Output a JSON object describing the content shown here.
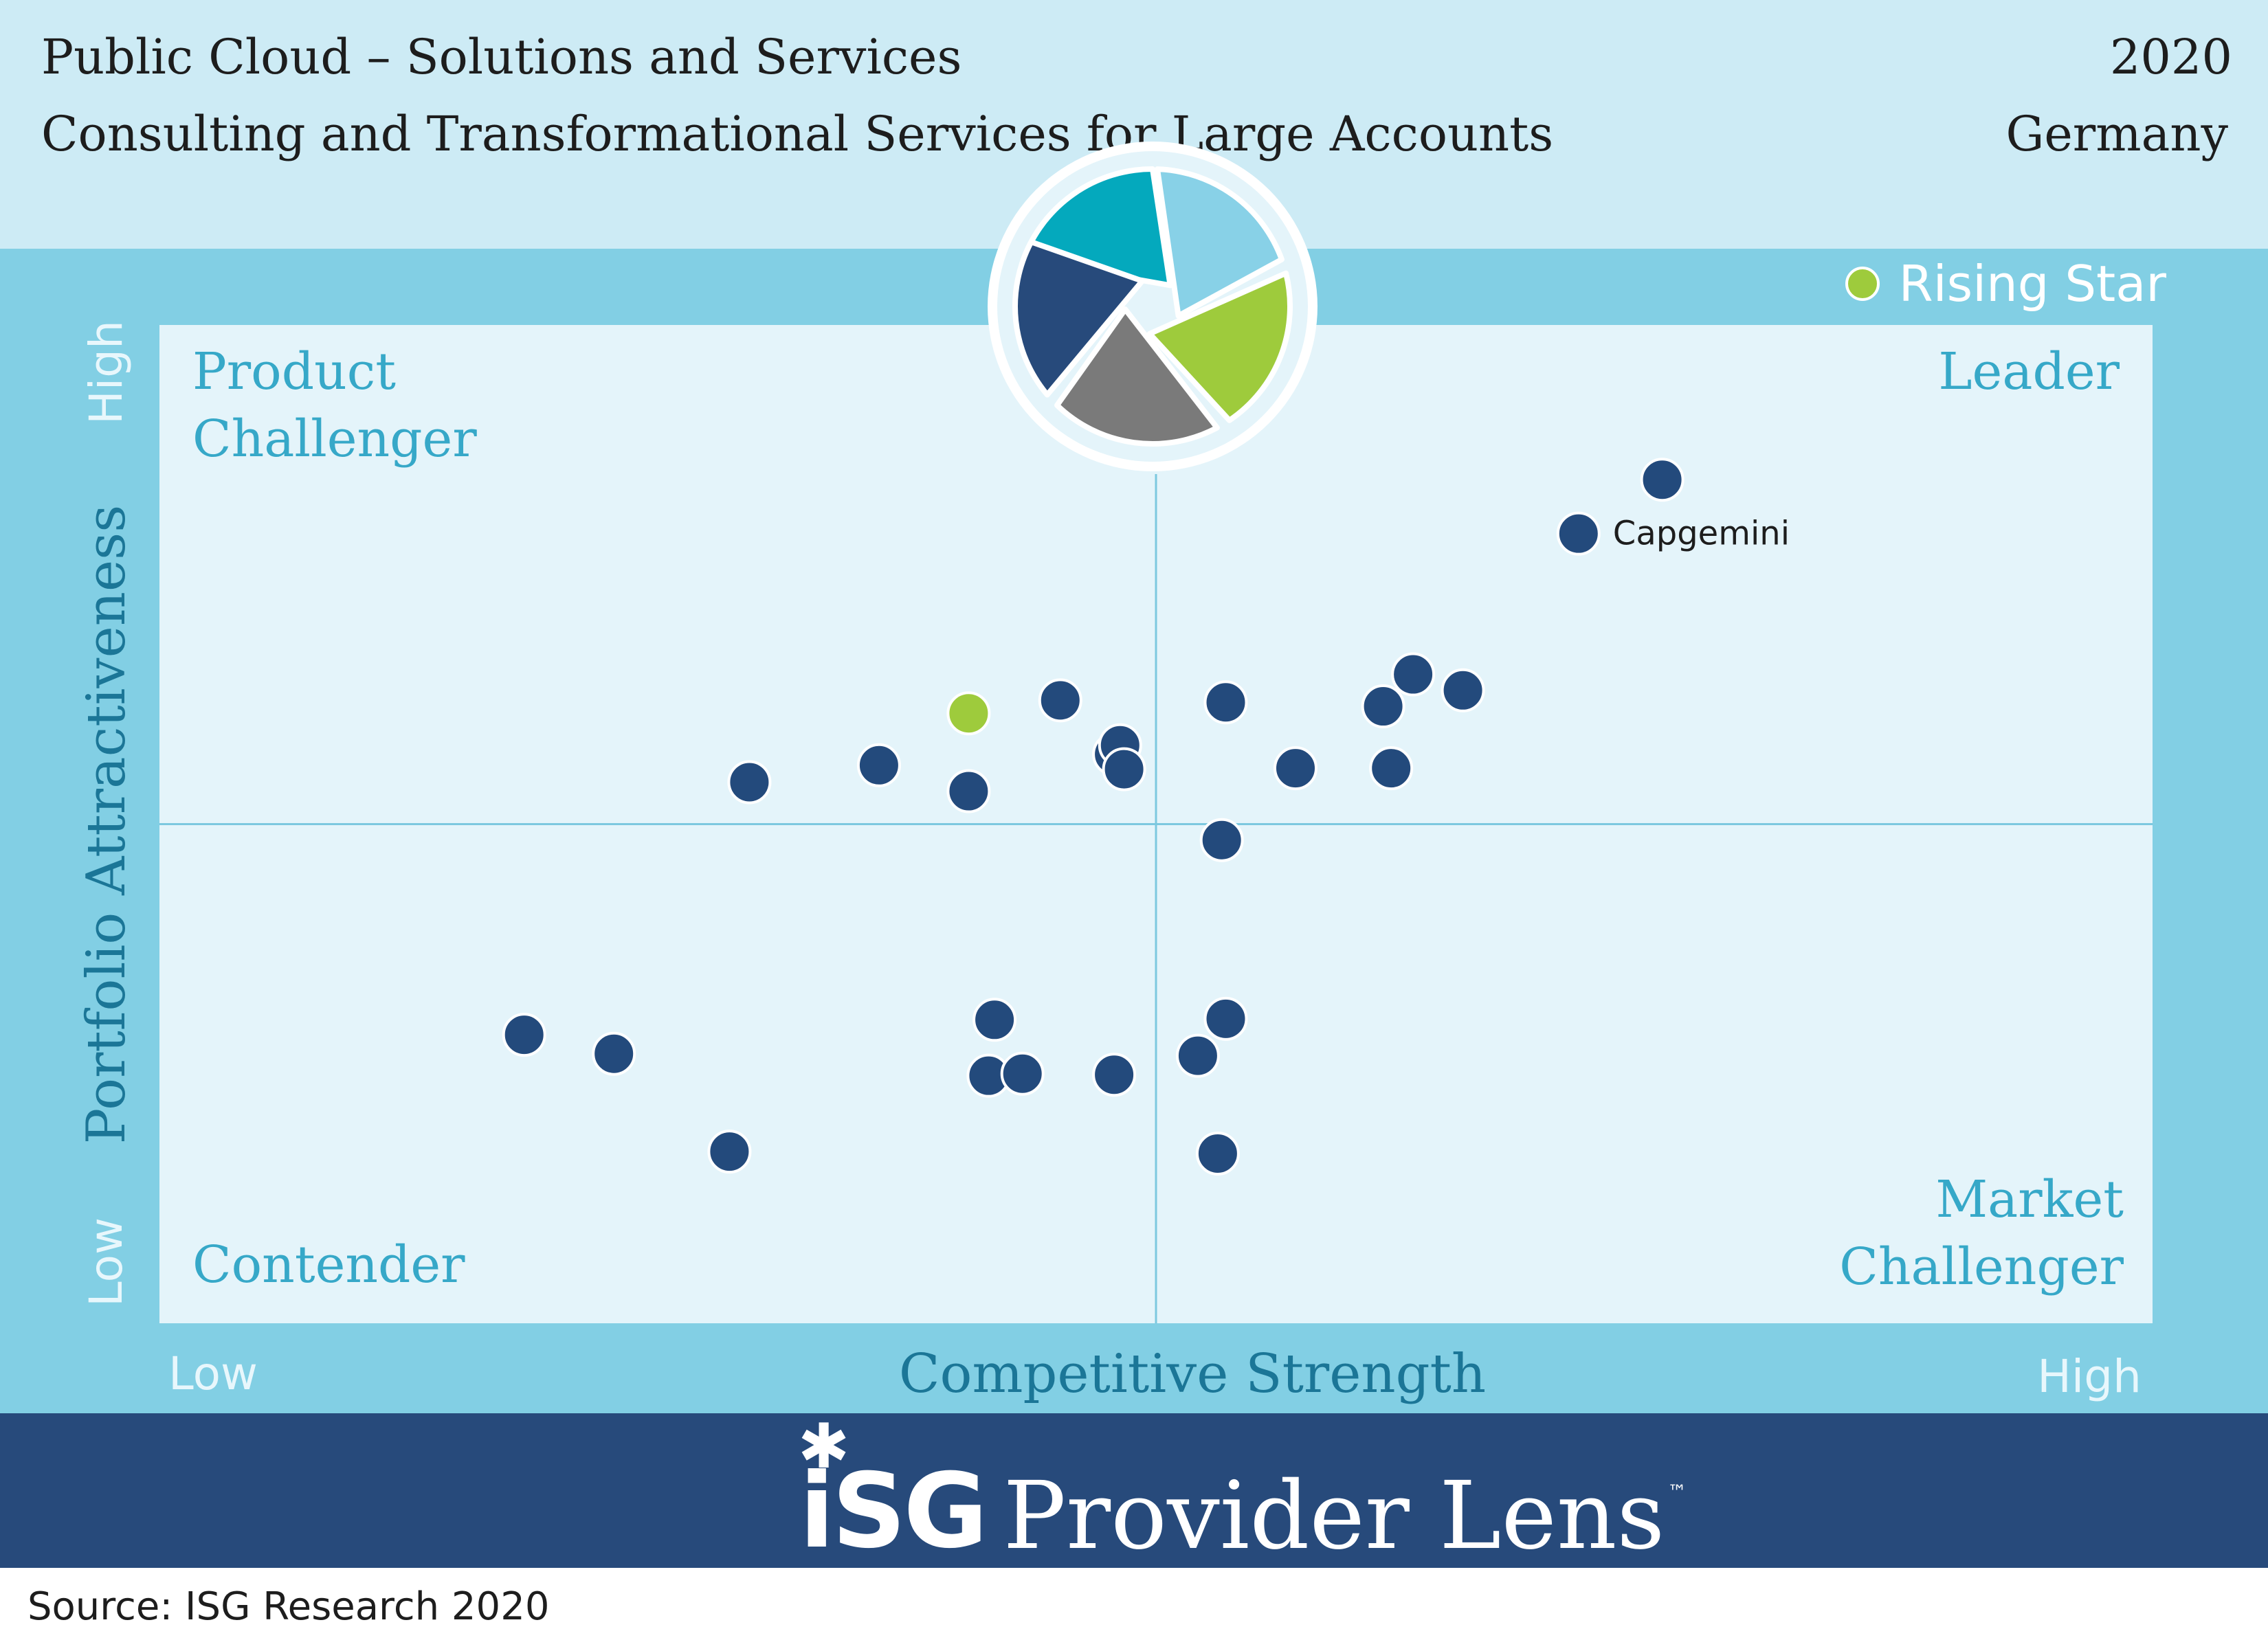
{
  "header": {
    "line1": "Public Cloud – Solutions and Services",
    "line2": "Consulting and Transformational Services for Large Accounts",
    "year": "2020",
    "region": "Germany"
  },
  "legend": {
    "label": "Rising Star",
    "color": "#9ecb3c"
  },
  "quadrants": {
    "top_left": [
      "Product",
      "Challenger"
    ],
    "top_right": [
      "Leader"
    ],
    "bottom_left": [
      "Contender"
    ],
    "bottom_right": [
      "Market",
      "Challenger"
    ]
  },
  "footer": {
    "brand_mark": "iSG",
    "brand_text": "Provider Lens",
    "trademark": "™",
    "source": "Source: ISG Research 2020"
  },
  "colors": {
    "header_bg": "#cdebf5",
    "band_bg": "#82cfe4",
    "plot_bg": "#e4f4fa",
    "footer_bg": "#274a7b",
    "provider": "#234a7c",
    "rising_star": "#9ecb3c",
    "quadrant_text": "#36a8c8",
    "axis_title": "#1b7697",
    "logo_slices": [
      "#04a9bd",
      "#88d1e7",
      "#9ecb3c",
      "#7a7a7a",
      "#274a7b"
    ]
  },
  "chart_data": {
    "type": "scatter",
    "xlabel": "Competitive Strength",
    "ylabel": "Portfolio Attractiveness",
    "xlim": [
      0,
      1
    ],
    "ylim": [
      0,
      1
    ],
    "x_ticks": [
      "Low",
      "High"
    ],
    "y_ticks": [
      "Low",
      "High"
    ],
    "quadrant_split": {
      "x": 0.5,
      "y": 0.5
    },
    "series": [
      {
        "name": "",
        "points": [
          {
            "x": 0.754,
            "y": 0.845
          },
          {
            "x": 0.712,
            "y": 0.791,
            "label": "Capgemini"
          },
          {
            "x": 0.183,
            "y": 0.289
          },
          {
            "x": 0.228,
            "y": 0.27
          },
          {
            "x": 0.286,
            "y": 0.172
          },
          {
            "x": 0.296,
            "y": 0.542
          },
          {
            "x": 0.361,
            "y": 0.559
          },
          {
            "x": 0.406,
            "y": 0.533
          },
          {
            "x": 0.419,
            "y": 0.304
          },
          {
            "x": 0.416,
            "y": 0.248
          },
          {
            "x": 0.433,
            "y": 0.25
          },
          {
            "x": 0.452,
            "y": 0.624
          },
          {
            "x": 0.479,
            "y": 0.57
          },
          {
            "x": 0.482,
            "y": 0.579
          },
          {
            "x": 0.484,
            "y": 0.555
          },
          {
            "x": 0.479,
            "y": 0.249
          },
          {
            "x": 0.521,
            "y": 0.268
          },
          {
            "x": 0.535,
            "y": 0.622
          },
          {
            "x": 0.533,
            "y": 0.484
          },
          {
            "x": 0.535,
            "y": 0.305
          },
          {
            "x": 0.531,
            "y": 0.17
          },
          {
            "x": 0.57,
            "y": 0.556
          },
          {
            "x": 0.614,
            "y": 0.618
          },
          {
            "x": 0.629,
            "y": 0.65
          },
          {
            "x": 0.618,
            "y": 0.556
          },
          {
            "x": 0.654,
            "y": 0.634
          }
        ]
      },
      {
        "name": "Rising Star",
        "points": [
          {
            "x": 0.406,
            "y": 0.611
          }
        ]
      }
    ]
  }
}
